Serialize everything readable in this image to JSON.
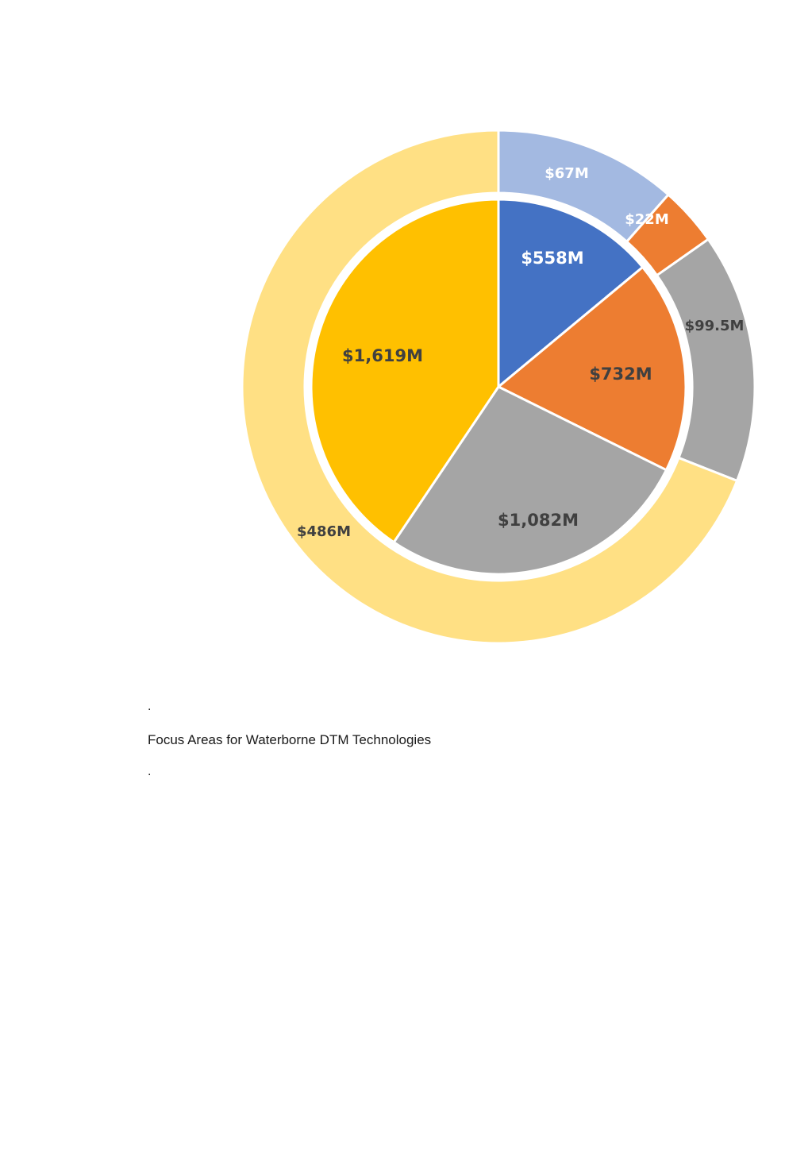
{
  "chart_data": {
    "type": "pie",
    "title": "",
    "inner_ring": {
      "slices": [
        {
          "label": "$558M",
          "value": 558,
          "color": "#4472C4",
          "label_color": "#ffffff"
        },
        {
          "label": "$732M",
          "value": 732,
          "color": "#ED7D31",
          "label_color": "#404040"
        },
        {
          "label": "$1,082M",
          "value": 1082,
          "color": "#A5A5A5",
          "label_color": "#404040"
        },
        {
          "label": "$1,619M",
          "value": 1619,
          "color": "#FFC000",
          "label_color": "#404040"
        }
      ]
    },
    "outer_ring": {
      "slices": [
        {
          "label": "$67M",
          "value": 67,
          "color": "#A3B9E1",
          "label_color": "#ffffff"
        },
        {
          "label": "$22M",
          "value": 22,
          "color": "#ED7D31",
          "label_color": "#ffffff"
        },
        {
          "label": "$99.5M",
          "value": 99.5,
          "color": "#A5A5A5",
          "label_color": "#404040"
        },
        {
          "label": "$486M",
          "value": 486,
          "color": "#FFE084",
          "label_color": "#404040"
        }
      ]
    }
  },
  "caption": {
    "dot_before": ".",
    "text": "Focus Areas for Waterborne DTM Technologies",
    "dot_after": "."
  }
}
